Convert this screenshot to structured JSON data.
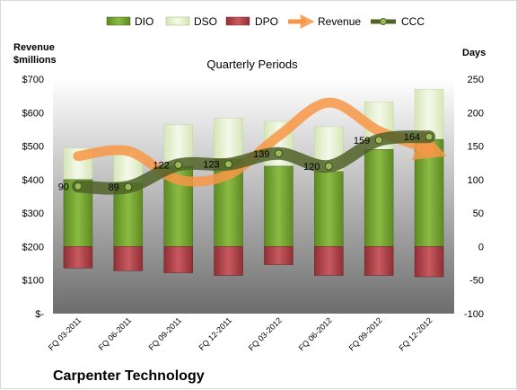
{
  "chart_data": {
    "type": "bar",
    "title": "Quarterly Periods",
    "company": "Carpenter Technology",
    "left_axis_label_line1": "Revenue",
    "left_axis_label_line2": "$millions",
    "right_axis_label": "Days",
    "categories": [
      "FQ 03-2011",
      "FQ 06-2011",
      "FQ 09-2011",
      "FQ 12-2011",
      "FQ 03-2012",
      "FQ 06-2012",
      "FQ 09-2012",
      "FQ 12-2012"
    ],
    "left_ticks": [
      "$-",
      "$100",
      "$200",
      "$300",
      "$400",
      "$500",
      "$600",
      "$700"
    ],
    "left_ylim": [
      0,
      700
    ],
    "right_ticks": [
      "-100",
      "-50",
      "0",
      "50",
      "100",
      "150",
      "200",
      "250"
    ],
    "right_ylim": [
      -100,
      250
    ],
    "series": [
      {
        "name": "DIO",
        "axis": "right",
        "color": "#77a033",
        "values": [
          100,
          95,
          120,
          130,
          120,
          112,
          145,
          160
        ]
      },
      {
        "name": "DSO",
        "axis": "right",
        "color": "#e4efcf",
        "values": [
          47,
          48,
          62,
          62,
          67,
          67,
          71,
          75
        ]
      },
      {
        "name": "DPO",
        "axis": "right",
        "color": "#b4474d",
        "values": [
          -32,
          -36,
          -39,
          -43,
          -27,
          -43,
          -43,
          -45
        ]
      },
      {
        "name": "Revenue",
        "axis": "left",
        "color": "#f79646",
        "values": [
          470,
          485,
          400,
          415,
          530,
          630,
          545,
          490
        ]
      },
      {
        "name": "CCC",
        "axis": "right",
        "color": "#4f6228",
        "values": [
          90,
          89,
          122,
          123,
          139,
          120,
          159,
          164
        ]
      }
    ],
    "ccc_labels": [
      "90",
      "89",
      "122",
      "123",
      "139",
      "120",
      "159",
      "164"
    ],
    "legend_position": "top"
  }
}
